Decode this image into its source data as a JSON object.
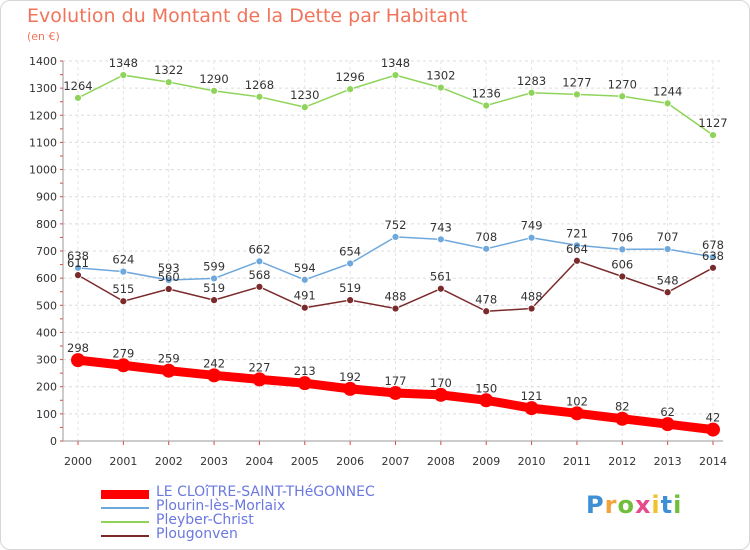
{
  "header": {
    "title": "Evolution du Montant de la Dette par Habitant",
    "subtitle": "(en €)"
  },
  "logo": {
    "text": "Proxiti",
    "letters": [
      "P",
      "r",
      "o",
      "x",
      "i",
      "t",
      "i"
    ]
  },
  "chart_data": {
    "type": "line",
    "x": [
      "2000",
      "2001",
      "2002",
      "2003",
      "2004",
      "2005",
      "2006",
      "2007",
      "2008",
      "2009",
      "2010",
      "2011",
      "2012",
      "2013",
      "2014"
    ],
    "ylim": [
      0,
      1400
    ],
    "yticks": [
      0,
      100,
      200,
      300,
      400,
      500,
      600,
      700,
      800,
      900,
      1000,
      1100,
      1200,
      1300,
      1400
    ],
    "grid": true,
    "legend_position": "bottom-left",
    "series": [
      {
        "name": "LE CLOîTRE-SAINT-THéGONNEC",
        "color": "#ff0000",
        "values": [
          298,
          279,
          259,
          242,
          227,
          213,
          192,
          177,
          170,
          150,
          121,
          102,
          82,
          62,
          42
        ],
        "labels": [
          "298",
          "279",
          "259",
          "242",
          "227",
          "213",
          "192",
          "177",
          "170",
          "150",
          "121",
          "102",
          "82",
          "62",
          "42"
        ],
        "thick": true
      },
      {
        "name": "Plourin-lès-Morlaix",
        "color": "#6fa8dc",
        "values": [
          638,
          624,
          593,
          599,
          662,
          594,
          654,
          752,
          743,
          708,
          749,
          721,
          706,
          707,
          678
        ],
        "labels": [
          "638",
          "624",
          "593",
          "599",
          "662",
          "594",
          "654",
          "752",
          "743",
          "708",
          "749",
          "721",
          "706",
          "707",
          "678"
        ]
      },
      {
        "name": "Pleyber-Christ",
        "color": "#8fd45a",
        "values": [
          1264,
          1348,
          1322,
          1290,
          1268,
          1230,
          1296,
          1348,
          1302,
          1236,
          1283,
          1277,
          1270,
          1244,
          1127
        ],
        "labels": [
          "1264",
          "1348",
          "1322",
          "1290",
          "1268",
          "1230",
          "1296",
          "1348",
          "1302",
          "1236",
          "1283",
          "1277",
          "1270",
          "1244",
          "1127"
        ]
      },
      {
        "name": "Plougonven",
        "color": "#7a2a2a",
        "values": [
          611,
          515,
          560,
          519,
          568,
          491,
          519,
          488,
          561,
          478,
          488,
          664,
          606,
          548,
          638
        ],
        "labels": [
          "611",
          "515",
          "560",
          "519",
          "568",
          "491",
          "519",
          "488",
          "561",
          "478",
          "488",
          "664",
          "606",
          "548",
          "638"
        ]
      }
    ]
  }
}
